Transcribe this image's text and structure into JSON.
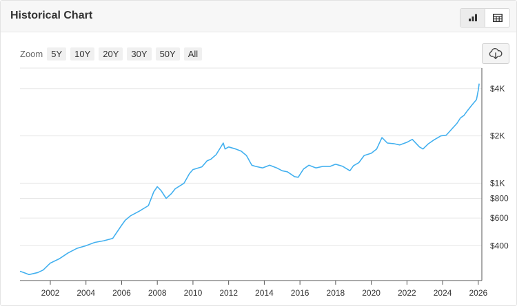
{
  "header": {
    "title": "Historical Chart"
  },
  "toolbar": {
    "zoom_label": "Zoom",
    "zoom_options": [
      "5Y",
      "10Y",
      "20Y",
      "30Y",
      "50Y",
      "All"
    ],
    "view_icons": [
      "bar-chart-icon",
      "table-icon"
    ],
    "download_icon": "cloud-download-icon"
  },
  "colors": {
    "line": "#42b0ef",
    "grid": "#e6e6e6",
    "axis": "#333333"
  },
  "chart_data": {
    "type": "line",
    "title": "",
    "xlabel": "",
    "ylabel": "",
    "y_scale": "log",
    "ylim": [
      240,
      5400
    ],
    "xlim": [
      2000.3,
      2026.2
    ],
    "x_ticks": [
      "2002",
      "2004",
      "2006",
      "2008",
      "2010",
      "2012",
      "2014",
      "2016",
      "2018",
      "2020",
      "2022",
      "2024",
      "2026"
    ],
    "y_ticks": [
      {
        "value": 400,
        "label": "$400"
      },
      {
        "value": 600,
        "label": "$600"
      },
      {
        "value": 800,
        "label": "$800"
      },
      {
        "value": 1000,
        "label": "$1K"
      },
      {
        "value": 2000,
        "label": "$2K"
      },
      {
        "value": 4000,
        "label": "$4K"
      }
    ],
    "grid": true,
    "series": [
      {
        "x": [
          2000.3,
          2000.5,
          2000.8,
          2001.0,
          2001.3,
          2001.6,
          2002.0,
          2002.5,
          2003.0,
          2003.5,
          2004.0,
          2004.5,
          2005.0,
          2005.5,
          2006.0,
          2006.2,
          2006.5,
          2007.0,
          2007.5,
          2007.8,
          2008.0,
          2008.2,
          2008.5,
          2008.8,
          2009.0,
          2009.5,
          2009.8,
          2010.0,
          2010.5,
          2010.8,
          2011.0,
          2011.3,
          2011.7,
          2011.8,
          2012.0,
          2012.4,
          2012.7,
          2013.0,
          2013.3,
          2013.5,
          2013.9,
          2014.3,
          2014.7,
          2015.0,
          2015.3,
          2015.7,
          2015.9,
          2016.2,
          2016.5,
          2016.9,
          2017.3,
          2017.7,
          2018.0,
          2018.4,
          2018.8,
          2019.0,
          2019.3,
          2019.6,
          2020.0,
          2020.3,
          2020.6,
          2020.9,
          2021.3,
          2021.6,
          2022.0,
          2022.3,
          2022.7,
          2022.9,
          2023.2,
          2023.5,
          2023.9,
          2024.2,
          2024.5,
          2024.8,
          2025.0,
          2025.2,
          2025.4,
          2025.6,
          2025.8,
          2025.9,
          2026.0,
          2026.05
        ],
        "y": [
          275,
          270,
          262,
          265,
          270,
          280,
          310,
          330,
          360,
          385,
          400,
          420,
          430,
          445,
          540,
          580,
          620,
          665,
          720,
          880,
          950,
          900,
          800,
          860,
          920,
          1000,
          1150,
          1220,
          1270,
          1390,
          1420,
          1520,
          1800,
          1650,
          1700,
          1650,
          1600,
          1500,
          1300,
          1280,
          1250,
          1300,
          1250,
          1200,
          1180,
          1100,
          1090,
          1230,
          1300,
          1250,
          1280,
          1280,
          1320,
          1280,
          1200,
          1290,
          1350,
          1500,
          1550,
          1650,
          1950,
          1800,
          1780,
          1750,
          1820,
          1900,
          1700,
          1650,
          1780,
          1880,
          2000,
          2020,
          2200,
          2400,
          2600,
          2700,
          2900,
          3100,
          3300,
          3400,
          3900,
          4300
        ]
      }
    ]
  }
}
